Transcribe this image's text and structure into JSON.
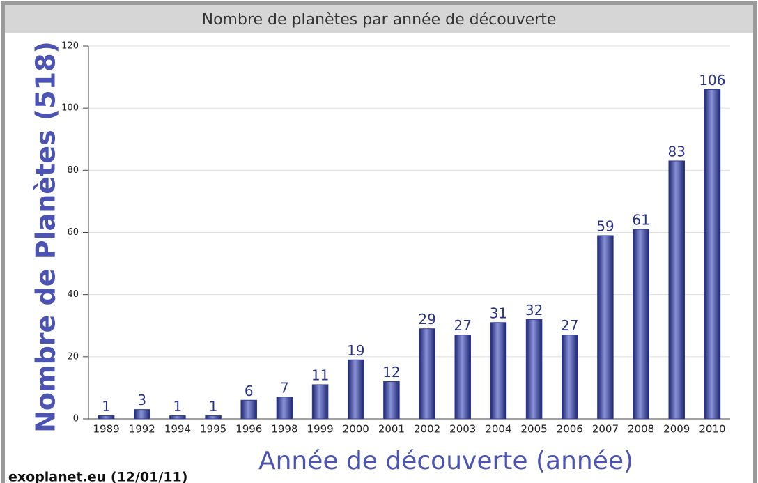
{
  "chart_data": {
    "type": "bar",
    "title": "Nombre de planètes par année de découverte",
    "x_label": "Année de découverte (année)",
    "y_label": "Nombre de Planètes (518)",
    "source": "exoplanet.eu (12/01/11)",
    "categories": [
      "1989",
      "1992",
      "1994",
      "1995",
      "1996",
      "1998",
      "1999",
      "2000",
      "2001",
      "2002",
      "2003",
      "2004",
      "2005",
      "2006",
      "2007",
      "2008",
      "2009",
      "2010"
    ],
    "values": [
      1,
      3,
      1,
      1,
      6,
      7,
      11,
      19,
      12,
      29,
      27,
      31,
      32,
      27,
      59,
      61,
      83,
      106
    ],
    "color": "#2e3a96",
    "ylim": [
      0,
      120
    ],
    "yticks": [
      0,
      20,
      40,
      60,
      80,
      100,
      120
    ],
    "grid": true
  }
}
